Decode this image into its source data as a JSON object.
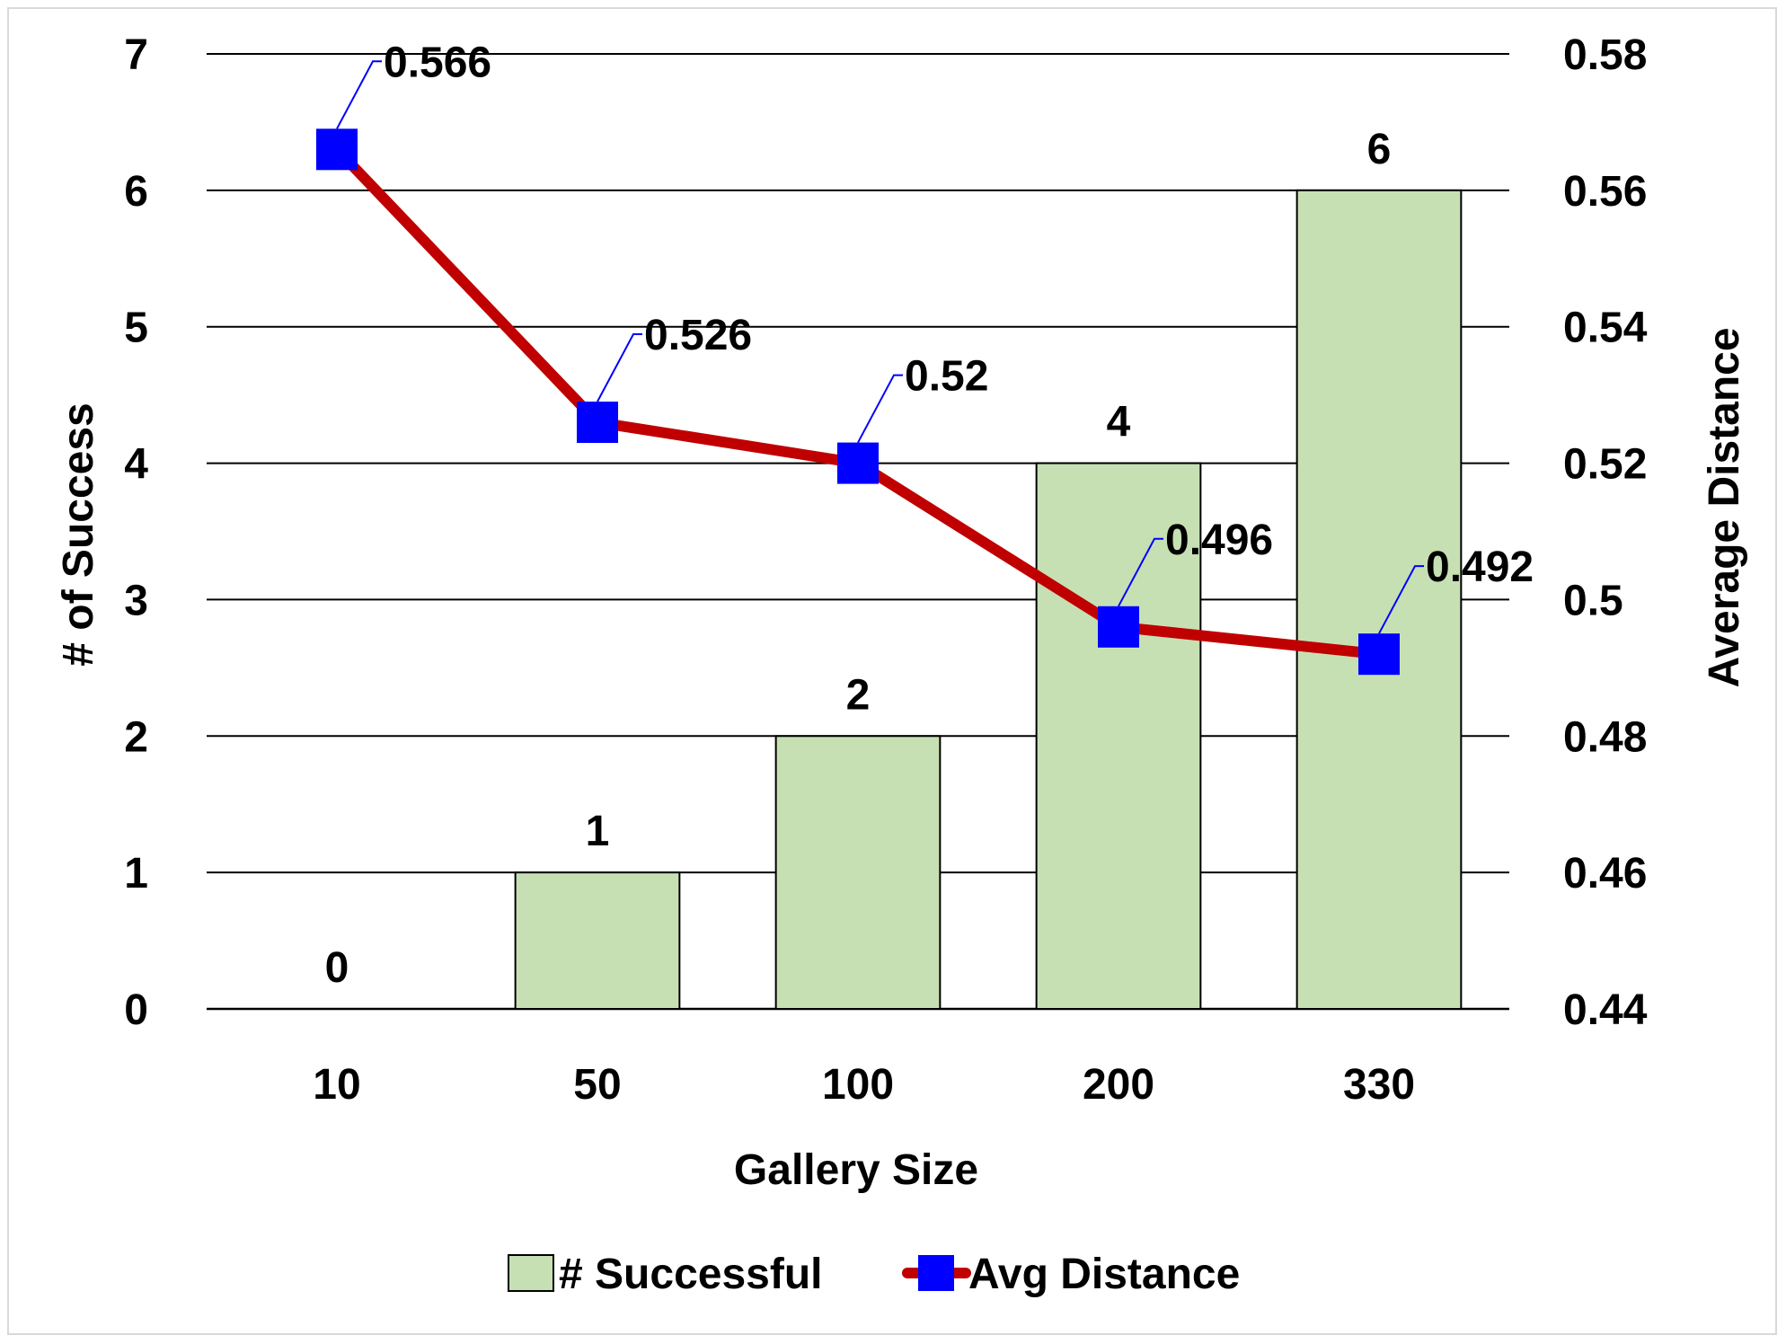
{
  "chart_data": {
    "type": "bar",
    "categories": [
      "10",
      "50",
      "100",
      "200",
      "330"
    ],
    "xlabel": "Gallery Size",
    "ylabel": "# of Success",
    "ylabel_right": "Average Distance",
    "ylim": [
      0,
      7
    ],
    "yticks": [
      "0",
      "1",
      "2",
      "3",
      "4",
      "5",
      "6",
      "7"
    ],
    "ylim_right": [
      0.44,
      0.58
    ],
    "yticks_right": [
      "0.44",
      "0.46",
      "0.48",
      "0.5",
      "0.52",
      "0.54",
      "0.56",
      "0.58"
    ],
    "grid": true,
    "legend_position": "bottom",
    "series": [
      {
        "name": "# Successful",
        "type": "bar",
        "axis": "left",
        "values": [
          0,
          1,
          2,
          4,
          6
        ],
        "labels": [
          "0",
          "1",
          "2",
          "4",
          "6"
        ],
        "color": "#c6e0b4"
      },
      {
        "name": "Avg Distance",
        "type": "line",
        "axis": "right",
        "values": [
          0.566,
          0.526,
          0.52,
          0.496,
          0.492
        ],
        "labels": [
          "0.566",
          "0.526",
          "0.52",
          "0.496",
          "0.492"
        ],
        "line_color": "#c00000",
        "marker_color": "#0000ff",
        "label_leader_color": "#0000ff"
      }
    ]
  }
}
